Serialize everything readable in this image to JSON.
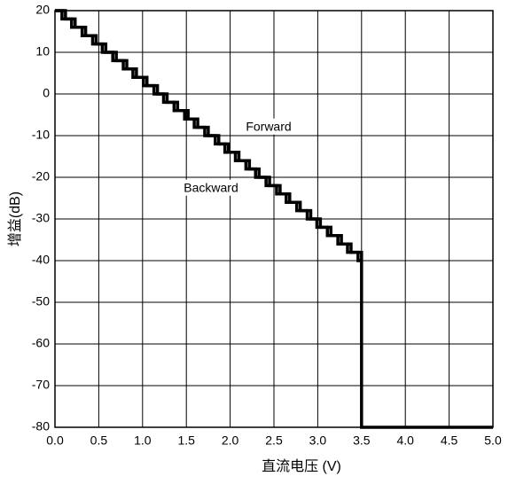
{
  "chart_data": {
    "type": "line",
    "step": "post",
    "x_label": "直流电压  (V)",
    "y_label": "增益(dB)",
    "annotations": [
      "Forward",
      "Backward"
    ],
    "series": [
      {
        "name": "Forward",
        "color": "#000000",
        "x": [
          0,
          0.12,
          0.23,
          0.35,
          0.47,
          0.58,
          0.7,
          0.82,
          0.93,
          1.05,
          1.17,
          1.28,
          1.4,
          1.52,
          1.63,
          1.75,
          1.87,
          1.98,
          2.1,
          2.22,
          2.33,
          2.45,
          2.57,
          2.68,
          2.8,
          2.92,
          3.03,
          3.15,
          3.27,
          3.38,
          3.5,
          3.5,
          5.0
        ],
        "values": [
          20,
          18,
          16,
          14,
          12,
          10,
          8,
          6,
          4,
          2,
          0,
          -2,
          -4,
          -6,
          -8,
          -10,
          -12,
          -14,
          -16,
          -18,
          -20,
          -22,
          -24,
          -26,
          -28,
          -30,
          -32,
          -34,
          -36,
          -38,
          -40,
          -80,
          -80
        ]
      },
      {
        "name": "Backward",
        "color": "#000000",
        "x": [
          0,
          0.08,
          0.19,
          0.31,
          0.43,
          0.54,
          0.66,
          0.78,
          0.89,
          1.01,
          1.13,
          1.24,
          1.36,
          1.48,
          1.59,
          1.71,
          1.83,
          1.94,
          2.06,
          2.18,
          2.29,
          2.41,
          2.53,
          2.64,
          2.76,
          2.88,
          2.99,
          3.11,
          3.23,
          3.34,
          3.46,
          3.5
        ],
        "values": [
          20,
          18,
          16,
          14,
          12,
          10,
          8,
          6,
          4,
          2,
          0,
          -2,
          -4,
          -6,
          -8,
          -10,
          -12,
          -14,
          -16,
          -18,
          -20,
          -22,
          -24,
          -26,
          -28,
          -30,
          -32,
          -34,
          -36,
          -38,
          -40,
          -40
        ]
      }
    ],
    "xlim": [
      0,
      5
    ],
    "xticks": [
      {
        "value": 0,
        "label": "0.0"
      },
      0.5,
      {
        "value": 1,
        "label": "1.0"
      },
      1.5,
      {
        "value": 2,
        "label": "2.0"
      },
      2.5,
      {
        "value": 3,
        "label": "3.0"
      },
      3.5,
      {
        "value": 4,
        "label": "4.0"
      },
      4.5,
      {
        "value": 5,
        "label": "5.0"
      }
    ],
    "ylim": [
      -80,
      20
    ],
    "yticks": [
      -80,
      -70,
      -60,
      -50,
      -40,
      -30,
      -20,
      -10,
      0,
      10,
      20
    ],
    "grid": true
  }
}
